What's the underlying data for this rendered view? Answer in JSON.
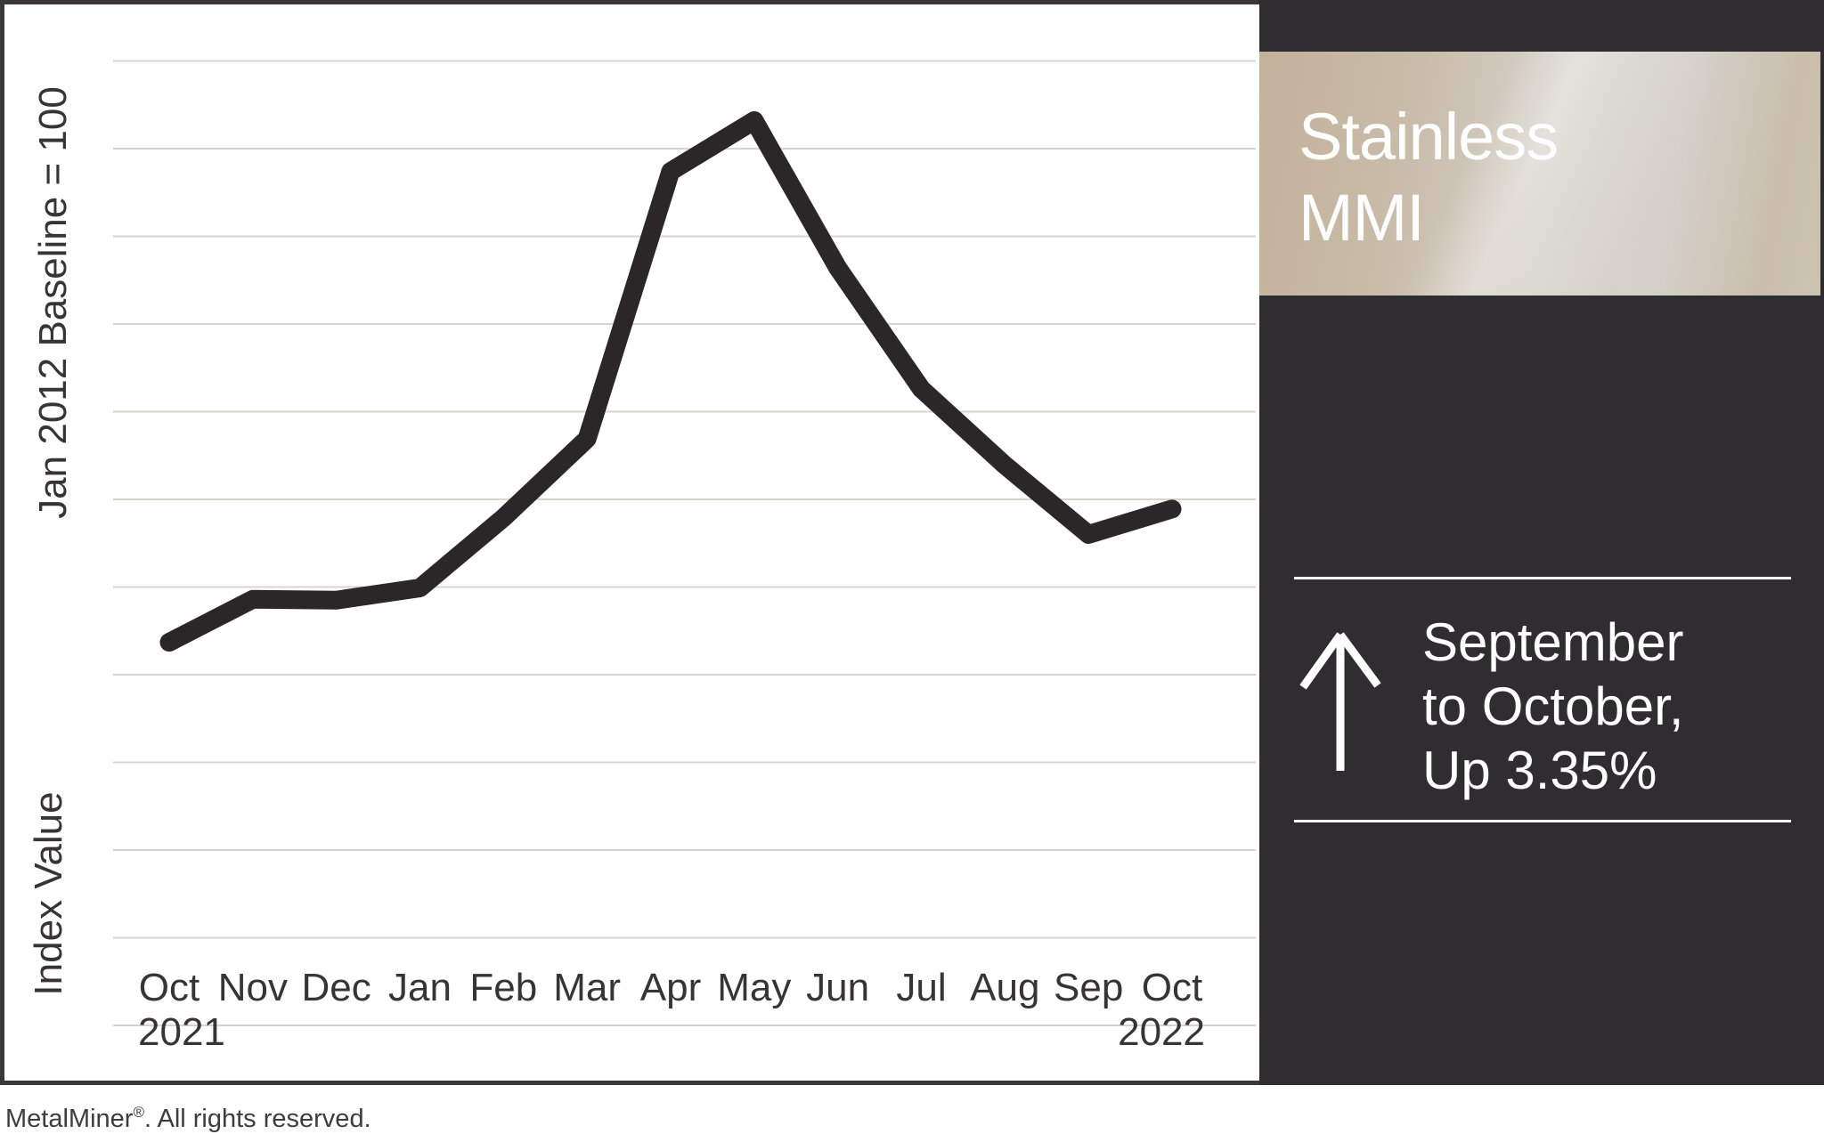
{
  "chart_data": {
    "type": "line",
    "title": "Stainless MMI",
    "categories": [
      "Oct 2021",
      "Nov 2021",
      "Dec 2021",
      "Jan 2022",
      "Feb 2022",
      "Mar 2022",
      "Apr 2022",
      "May 2022",
      "Jun 2022",
      "Jul 2022",
      "Aug 2022",
      "Sep 2022",
      "Oct 2022"
    ],
    "series": [
      {
        "name": "Stainless MMI",
        "values": [
          73.7,
          78.6,
          78.5,
          79.9,
          87.9,
          96.9,
          127.4,
          133.2,
          116.4,
          102.6,
          93.9,
          86.0,
          88.9
        ]
      }
    ],
    "xlabel": "",
    "ylabel_upper": "Jan 2012 Baseline = 100",
    "ylabel_lower": "Index Value",
    "ylim": [
      23,
      146
    ],
    "yticks": {
      "min": 30,
      "max": 140,
      "step": 10,
      "labels_shown": false
    },
    "grid": "horizontal",
    "legend": "none",
    "line_color": "#2b2728",
    "line_width": 21,
    "gridline_color": "#d8d5cf"
  },
  "axis": {
    "x_ticks": [
      {
        "label": "Oct",
        "sub": "2021",
        "sub_align": "left"
      },
      {
        "label": "Nov",
        "sub": ""
      },
      {
        "label": "Dec",
        "sub": ""
      },
      {
        "label": "Jan",
        "sub": ""
      },
      {
        "label": "Feb",
        "sub": ""
      },
      {
        "label": "Mar",
        "sub": ""
      },
      {
        "label": "Apr",
        "sub": ""
      },
      {
        "label": "May",
        "sub": ""
      },
      {
        "label": "Jun",
        "sub": ""
      },
      {
        "label": "Jul",
        "sub": ""
      },
      {
        "label": "Aug",
        "sub": ""
      },
      {
        "label": "Sep",
        "sub": ""
      },
      {
        "label": "Oct",
        "sub": "2022",
        "sub_align": "right"
      }
    ]
  },
  "sidebar": {
    "title_lines": [
      "Stainless",
      "MMI"
    ],
    "callout_lines": [
      "September",
      "to October,",
      "Up 3.35%"
    ],
    "trend_direction": "up",
    "colors": {
      "background": "#2f2d30",
      "band_left": "#c3b19a",
      "band_mid": "#d7d3cc",
      "band_right": "#cdc3b1",
      "text": "#ffffff"
    }
  },
  "footer": {
    "brand": "MetalMiner",
    "registered": "®",
    "rest": ". All rights reserved."
  },
  "colors": {
    "chart_line": "#2b2728",
    "gridline": "#d8d5cf",
    "frame": "#3b3738",
    "axis_text": "#383435",
    "footer_text": "#3d3d3d",
    "background": "#ffffff"
  }
}
